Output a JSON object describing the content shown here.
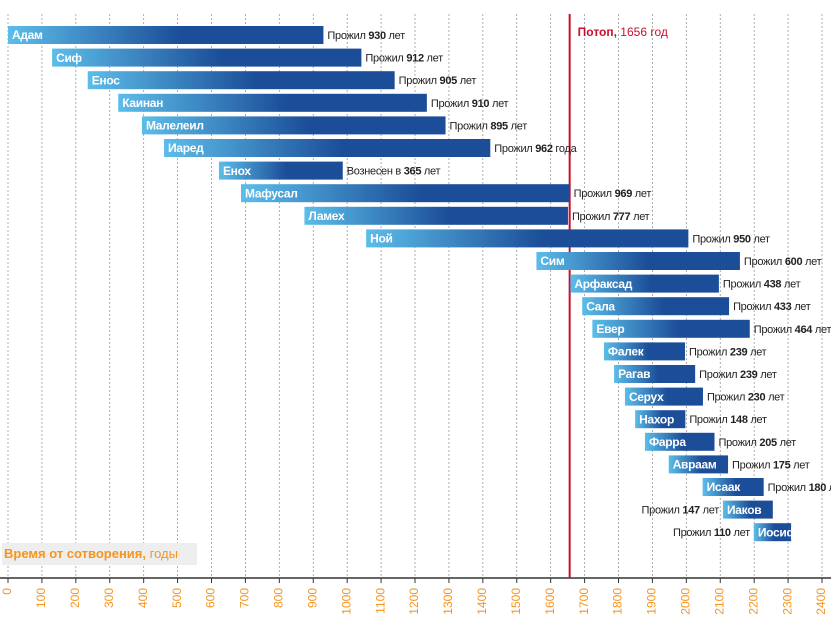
{
  "chart_data": {
    "type": "gantt",
    "xlim": [
      0,
      2400
    ],
    "xticks": [
      0,
      100,
      200,
      300,
      400,
      500,
      600,
      700,
      800,
      900,
      1000,
      1100,
      1200,
      1300,
      1400,
      1500,
      1600,
      1700,
      1800,
      1900,
      2000,
      2100,
      2200,
      2300,
      2400
    ],
    "grid": true,
    "bar_colors": [
      "#5cbde9",
      "#1b4d98"
    ],
    "tick_color": "#f7941d",
    "axis_label": {
      "bold": "Время от сотворения,",
      "normal": "годы"
    },
    "flood": {
      "label": "Потоп,",
      "year": 1656,
      "unit": "год",
      "color": "#c8102e"
    },
    "items": [
      {
        "name": "Адам",
        "start": 0,
        "value": 930,
        "prefix": "Прожил",
        "suffix": "лет",
        "side": "right"
      },
      {
        "name": "Сиф",
        "start": 130,
        "value": 912,
        "prefix": "Прожил",
        "suffix": "лет",
        "side": "right"
      },
      {
        "name": "Енос",
        "start": 235,
        "value": 905,
        "prefix": "Прожил",
        "suffix": "лет",
        "side": "right"
      },
      {
        "name": "Каинан",
        "start": 325,
        "value": 910,
        "prefix": "Прожил",
        "suffix": "лет",
        "side": "right"
      },
      {
        "name": "Малелеил",
        "start": 395,
        "value": 895,
        "prefix": "Прожил",
        "suffix": "лет",
        "side": "right"
      },
      {
        "name": "Иаред",
        "start": 460,
        "value": 962,
        "prefix": "Прожил",
        "suffix": "года",
        "side": "right"
      },
      {
        "name": "Енох",
        "start": 622,
        "value": 365,
        "prefix": "Вознесен в",
        "suffix": "лет",
        "side": "right"
      },
      {
        "name": "Мафусал",
        "start": 687,
        "value": 969,
        "prefix": "Прожил",
        "suffix": "лет",
        "side": "right"
      },
      {
        "name": "Ламех",
        "start": 874,
        "value": 777,
        "prefix": "Прожил",
        "suffix": "лет",
        "side": "right"
      },
      {
        "name": "Ной",
        "start": 1056,
        "value": 950,
        "prefix": "Прожил",
        "suffix": "лет",
        "side": "right"
      },
      {
        "name": "Сим",
        "start": 1558,
        "value": 600,
        "prefix": "Прожил",
        "suffix": "лет",
        "side": "right"
      },
      {
        "name": "Арфаксад",
        "start": 1658,
        "value": 438,
        "prefix": "Прожил",
        "suffix": "лет",
        "side": "right"
      },
      {
        "name": "Сала",
        "start": 1693,
        "value": 433,
        "prefix": "Прожил",
        "suffix": "лет",
        "side": "right"
      },
      {
        "name": "Евер",
        "start": 1723,
        "value": 464,
        "prefix": "Прожил",
        "suffix": "лет",
        "side": "right"
      },
      {
        "name": "Фалек",
        "start": 1757,
        "value": 239,
        "prefix": "Прожил",
        "suffix": "лет",
        "side": "right"
      },
      {
        "name": "Рагав",
        "start": 1787,
        "value": 239,
        "prefix": "Прожил",
        "suffix": "лет",
        "side": "right"
      },
      {
        "name": "Серух",
        "start": 1819,
        "value": 230,
        "prefix": "Прожил",
        "suffix": "лет",
        "side": "right"
      },
      {
        "name": "Нахор",
        "start": 1849,
        "value": 148,
        "prefix": "Прожил",
        "suffix": "лет",
        "side": "right"
      },
      {
        "name": "Фарра",
        "start": 1878,
        "value": 205,
        "prefix": "Прожил",
        "suffix": "лет",
        "side": "right"
      },
      {
        "name": "Авраам",
        "start": 1948,
        "value": 175,
        "prefix": "Прожил",
        "suffix": "лет",
        "side": "right"
      },
      {
        "name": "Исаак",
        "start": 2048,
        "value": 180,
        "prefix": "Прожил",
        "suffix": "лет",
        "side": "right"
      },
      {
        "name": "Иаков",
        "start": 2108,
        "value": 147,
        "prefix": "Прожил",
        "suffix": "лет",
        "side": "left"
      },
      {
        "name": "Иосиф",
        "start": 2199,
        "value": 110,
        "prefix": "Прожил",
        "suffix": "лет",
        "side": "left"
      }
    ]
  }
}
